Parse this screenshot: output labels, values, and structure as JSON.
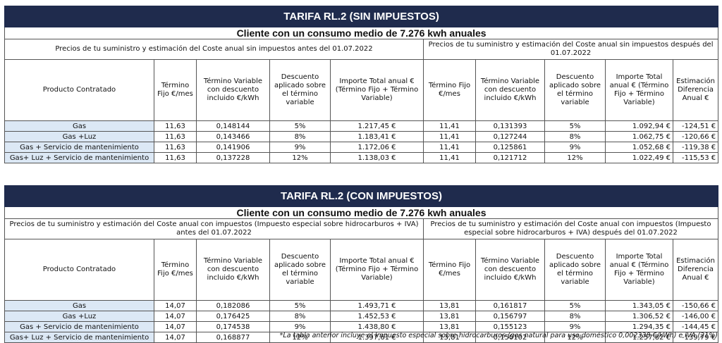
{
  "colors": {
    "title_bg": "#1f2b4d",
    "product_bg": "#dce8f5"
  },
  "tables": [
    {
      "title": "TARIFA RL.2 (SIN IMPUESTOS)",
      "subtitle": "Cliente con un consumo medio de 7.276 kwh anuales",
      "period_before": "Precios de tu suministro y estimación del Coste anual sin impuestos antes del 01.07.2022",
      "period_after": "Precios de tu suministro y estimación del Coste anual sin impuestos después del 01.07.2022",
      "headers": {
        "producto": "Producto Contratado",
        "termino_fijo": "Término Fijo €/mes",
        "termino_variable": "Término Variable con descuento incluido €/kWh",
        "descuento": "Descuento aplicado sobre el término variable",
        "importe_before": "Importe Total anual € (Término Fijo + Término Variable)",
        "termino_fijo_after": "Término Fijo €/mes",
        "termino_variable_after": "Término Variable con descuento incluido €/kWh",
        "descuento_after": "Descuento aplicado sobre el término variable",
        "importe_after": "Importe Total anual € (Término Fijo + Término Variable)",
        "diferencia": "Estimación Diferencia Anual €"
      },
      "rows": [
        {
          "producto": "Gas",
          "tf1": "11,63",
          "tv1": "0,148144",
          "d1": "5%",
          "imp1": "1.217,45 €",
          "tf2": "11,41",
          "tv2": "0,131393",
          "d2": "5%",
          "imp2": "1.092,94 €",
          "dif": "-124,51 €"
        },
        {
          "producto": "Gas +Luz",
          "tf1": "11,63",
          "tv1": "0,143466",
          "d1": "8%",
          "imp1": "1.183,41 €",
          "tf2": "11,41",
          "tv2": "0,127244",
          "d2": "8%",
          "imp2": "1.062,75 €",
          "dif": "-120,66 €"
        },
        {
          "producto": "Gas + Servicio de mantenimiento",
          "tf1": "11,63",
          "tv1": "0,141906",
          "d1": "9%",
          "imp1": "1.172,06 €",
          "tf2": "11,41",
          "tv2": "0,125861",
          "d2": "9%",
          "imp2": "1.052,68 €",
          "dif": "-119,38 €"
        },
        {
          "producto": "Gas+ Luz + Servicio de mantenimiento",
          "tf1": "11,63",
          "tv1": "0,137228",
          "d1": "12%",
          "imp1": "1.138,03 €",
          "tf2": "11,41",
          "tv2": "0,121712",
          "d2": "12%",
          "imp2": "1.022,49 €",
          "dif": "-115,53 €"
        }
      ]
    },
    {
      "title": "TARIFA RL.2 (CON IMPUESTOS)",
      "subtitle": "Cliente con un consumo medio de 7.276 kwh anuales",
      "period_before": "Precios de tu suministro y estimación del Coste anual con impuestos (Impuesto especial sobre hidrocarburos + IVA)  antes del 01.07.2022",
      "period_after": "Precios de tu suministro y estimación del Coste anual con impuestos (Impuesto especial sobre hidrocarburos + IVA)  después del 01.07.2022",
      "headers": {
        "producto": "Producto Contratado",
        "termino_fijo": "Término Fijo €/mes",
        "termino_variable": "Término Variable con descuento incluido €/kWh",
        "descuento": "Descuento aplicado sobre el término variable",
        "importe_before": "Importe Total anual € (Término Fijo + Término Variable)",
        "termino_fijo_after": "Término Fijo €/mes",
        "termino_variable_after": "Término Variable con descuento incluido €/kWh",
        "descuento_after": "Descuento aplicado sobre el término variable",
        "importe_after": "Importe Total anual € (Término Fijo + Término Variable)",
        "diferencia": "Estimación Diferencia Anual €"
      },
      "rows": [
        {
          "producto": "Gas",
          "tf1": "14,07",
          "tv1": "0,182086",
          "d1": "5%",
          "imp1": "1.493,71 €",
          "tf2": "13,81",
          "tv2": "0,161817",
          "d2": "5%",
          "imp2": "1.343,05 €",
          "dif": "-150,66 €"
        },
        {
          "producto": "Gas +Luz",
          "tf1": "14,07",
          "tv1": "0,176425",
          "d1": "8%",
          "imp1": "1.452,53 €",
          "tf2": "13,81",
          "tv2": "0,156797",
          "d2": "8%",
          "imp2": "1.306,52 €",
          "dif": "-146,00 €"
        },
        {
          "producto": "Gas + Servicio de mantenimiento",
          "tf1": "14,07",
          "tv1": "0,174538",
          "d1": "9%",
          "imp1": "1.438,80 €",
          "tf2": "13,81",
          "tv2": "0,155123",
          "d2": "9%",
          "imp2": "1.294,35 €",
          "dif": "-144,45 €"
        },
        {
          "producto": "Gas+ Luz + Servicio de mantenimiento",
          "tf1": "14,07",
          "tv1": "0,168877",
          "d1": "12%",
          "imp1": "1.397,61 €",
          "tf2": "13,81",
          "tv2": "0,150102",
          "d2": "12%",
          "imp2": "1.257,82 €",
          "dif": "-139,79 €"
        }
      ]
    }
  ],
  "footnote": "*La tabla anterior incluye el Impuesto especial sobre hidrocarburos (gas natural para uso doméstico 0,002338 €/kWh) e IVA (21%)"
}
